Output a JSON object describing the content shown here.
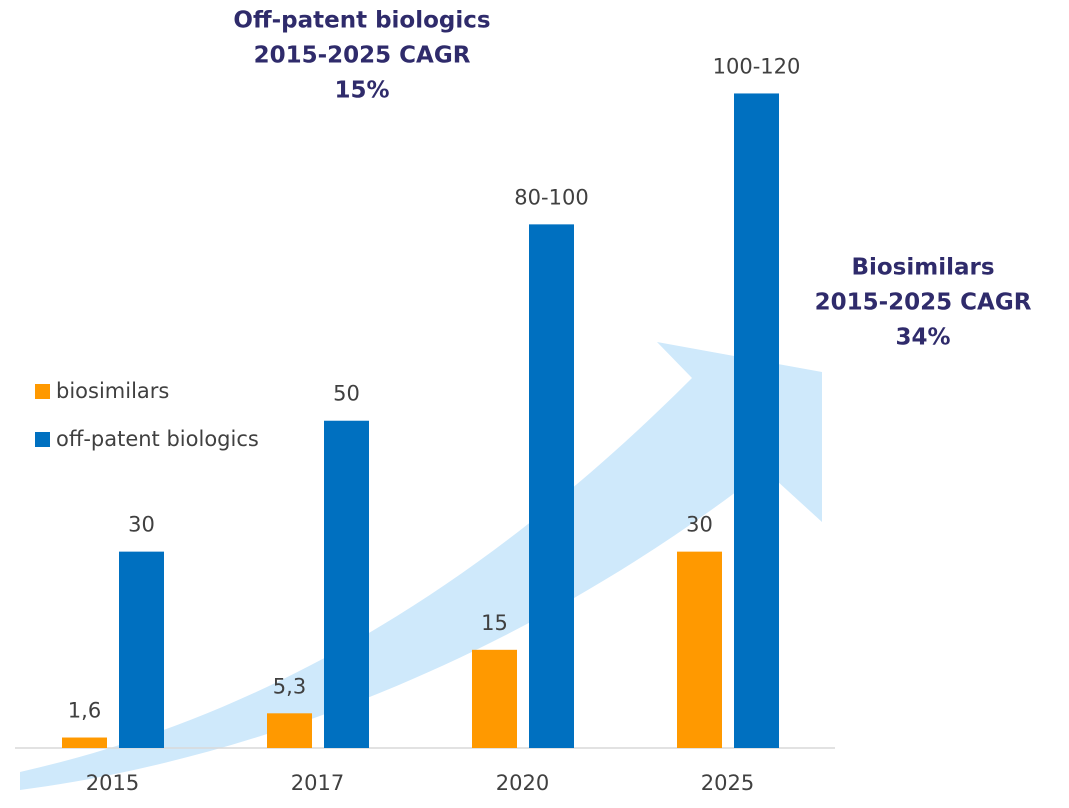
{
  "chart_data": {
    "type": "bar",
    "categories": [
      "2015",
      "2017",
      "2020",
      "2025"
    ],
    "series": [
      {
        "name": "biosimilars",
        "color": "#ff9900",
        "values": [
          1.6,
          5.3,
          15,
          30
        ],
        "value_labels": [
          "1,6",
          "5,3",
          "15",
          "30"
        ]
      },
      {
        "name": "off-patent biologics",
        "color": "#0070c0",
        "values": [
          30,
          50,
          80,
          100
        ],
        "value_labels": [
          "30",
          "50",
          "80-100",
          "100-120"
        ]
      }
    ],
    "ylim": [
      0,
      110
    ],
    "annotations": [
      {
        "lines": [
          "Off-patent biologics",
          "2015-2025 CAGR",
          "15%"
        ]
      },
      {
        "lines": [
          "Biosimilars",
          "2015-2025 CAGR",
          "34%"
        ]
      }
    ],
    "legend": "left"
  }
}
